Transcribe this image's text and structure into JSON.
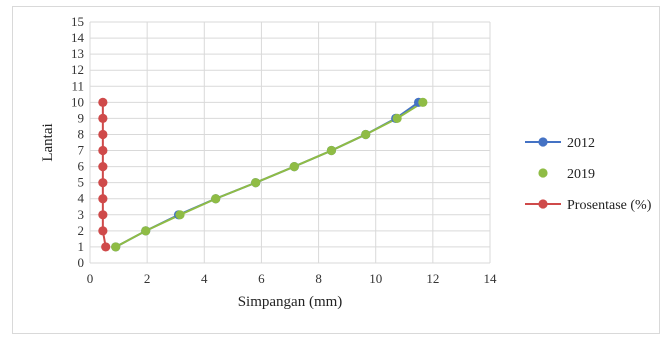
{
  "chart_data": {
    "type": "scatter",
    "title": "",
    "xlabel": "Simpangan (mm)",
    "ylabel": "Lantai",
    "xlim": [
      0,
      14
    ],
    "ylim": [
      0,
      15
    ],
    "xticks": [
      "0",
      "2",
      "4",
      "6",
      "8",
      "10",
      "12",
      "14"
    ],
    "yticks": [
      "0",
      "1",
      "2",
      "3",
      "4",
      "5",
      "6",
      "7",
      "8",
      "9",
      "10",
      "11",
      "12",
      "13",
      "14",
      "15"
    ],
    "grid": true,
    "legend_position": "right",
    "series": [
      {
        "name": "2012",
        "color": "#4472c4",
        "marker": "circle",
        "points": [
          [
            0.9,
            1
          ],
          [
            1.95,
            2
          ],
          [
            3.1,
            3
          ],
          [
            4.4,
            4
          ],
          [
            5.8,
            5
          ],
          [
            7.15,
            6
          ],
          [
            8.45,
            7
          ],
          [
            9.65,
            8
          ],
          [
            10.7,
            9
          ],
          [
            11.5,
            10
          ]
        ]
      },
      {
        "name": "2019",
        "color": "#8fbc45",
        "marker": "circle",
        "points": [
          [
            0.9,
            1
          ],
          [
            1.95,
            2
          ],
          [
            3.15,
            3
          ],
          [
            4.4,
            4
          ],
          [
            5.8,
            5
          ],
          [
            7.15,
            6
          ],
          [
            8.45,
            7
          ],
          [
            9.65,
            8
          ],
          [
            10.75,
            9
          ],
          [
            11.65,
            10
          ]
        ]
      },
      {
        "name": "Prosentase (%)",
        "color": "#cf4a4a",
        "marker": "circle",
        "points": [
          [
            0.55,
            1
          ],
          [
            0.45,
            2
          ],
          [
            0.45,
            3
          ],
          [
            0.45,
            4
          ],
          [
            0.45,
            5
          ],
          [
            0.45,
            6
          ],
          [
            0.45,
            7
          ],
          [
            0.45,
            8
          ],
          [
            0.45,
            9
          ],
          [
            0.45,
            10
          ]
        ]
      }
    ]
  }
}
